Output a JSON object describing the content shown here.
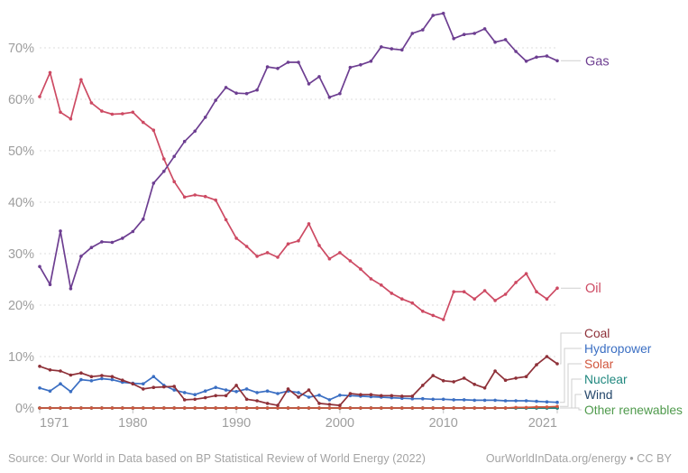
{
  "chart_data": {
    "type": "line",
    "title": "",
    "xlim": [
      1971,
      2021
    ],
    "ylim": [
      0,
      78
    ],
    "x_ticks": [
      1971,
      1980,
      1990,
      2000,
      2010,
      2021
    ],
    "y_ticks": [
      0,
      10,
      20,
      30,
      40,
      50,
      60,
      70
    ],
    "y_tick_suffix": "%",
    "grid": "dashed-horizontal",
    "legend_position": "line-end-labels-right",
    "years": [
      1971,
      1972,
      1973,
      1974,
      1975,
      1976,
      1977,
      1978,
      1979,
      1980,
      1981,
      1982,
      1983,
      1984,
      1985,
      1986,
      1987,
      1988,
      1989,
      1990,
      1991,
      1992,
      1993,
      1994,
      1995,
      1996,
      1997,
      1998,
      1999,
      2000,
      2001,
      2002,
      2003,
      2004,
      2005,
      2006,
      2007,
      2008,
      2009,
      2010,
      2011,
      2012,
      2013,
      2014,
      2015,
      2016,
      2017,
      2018,
      2019,
      2020,
      2021
    ],
    "series": [
      {
        "name": "Gas",
        "color": "#6d3e91",
        "values": [
          27.5,
          24.0,
          34.4,
          23.2,
          29.5,
          31.2,
          32.3,
          32.2,
          33.0,
          34.3,
          36.7,
          43.7,
          46.0,
          48.9,
          51.8,
          53.8,
          56.5,
          59.8,
          62.3,
          61.2,
          61.1,
          61.8,
          66.3,
          66.0,
          67.2,
          67.2,
          63.0,
          64.4,
          60.4,
          61.1,
          66.2,
          66.7,
          67.4,
          70.2,
          69.8,
          69.6,
          72.8,
          73.5,
          76.3,
          76.7,
          71.8,
          72.6,
          72.8,
          73.7,
          71.1,
          71.6,
          69.3,
          67.4,
          68.2,
          68.4,
          67.5
        ]
      },
      {
        "name": "Oil",
        "color": "#cd4a63",
        "values": [
          60.5,
          65.2,
          57.5,
          56.2,
          63.8,
          59.3,
          57.7,
          57.1,
          57.2,
          57.5,
          55.5,
          54.0,
          48.4,
          44.0,
          41.0,
          41.4,
          41.1,
          40.4,
          36.6,
          33.0,
          31.4,
          29.5,
          30.2,
          29.3,
          31.9,
          32.5,
          35.8,
          31.6,
          29.0,
          30.2,
          28.6,
          27.0,
          25.1,
          23.9,
          22.3,
          21.2,
          20.4,
          18.8,
          18.0,
          17.2,
          22.6,
          22.6,
          21.2,
          22.8,
          20.9,
          22.1,
          24.4,
          26.1,
          22.6,
          21.2,
          23.3
        ]
      },
      {
        "name": "Coal",
        "color": "#8e3038",
        "values": [
          8.1,
          7.4,
          7.2,
          6.4,
          6.8,
          6.1,
          6.3,
          6.1,
          5.4,
          4.7,
          3.7,
          4.0,
          4.1,
          4.2,
          1.6,
          1.7,
          2.0,
          2.4,
          2.4,
          4.4,
          1.7,
          1.4,
          0.9,
          0.5,
          3.7,
          2.1,
          3.5,
          0.9,
          0.7,
          0.5,
          2.8,
          2.6,
          2.6,
          2.4,
          2.4,
          2.3,
          2.3,
          4.4,
          6.3,
          5.3,
          5.1,
          5.8,
          4.6,
          3.9,
          7.2,
          5.4,
          5.8,
          6.1,
          8.4,
          10.0,
          8.6
        ]
      },
      {
        "name": "Hydropower",
        "color": "#3b6fc3",
        "values": [
          3.9,
          3.3,
          4.7,
          3.2,
          5.5,
          5.3,
          5.7,
          5.5,
          5.0,
          4.8,
          4.7,
          6.1,
          4.4,
          3.5,
          3.0,
          2.6,
          3.3,
          4.0,
          3.5,
          3.2,
          3.7,
          3.0,
          3.3,
          2.8,
          3.3,
          3.0,
          2.1,
          2.5,
          1.6,
          2.5,
          2.4,
          2.3,
          2.2,
          2.1,
          2.0,
          1.9,
          1.8,
          1.8,
          1.7,
          1.7,
          1.6,
          1.6,
          1.5,
          1.5,
          1.5,
          1.4,
          1.4,
          1.4,
          1.3,
          1.2,
          1.1
        ]
      },
      {
        "name": "Solar",
        "color": "#d1563d",
        "values": [
          0,
          0,
          0,
          0,
          0,
          0,
          0,
          0,
          0,
          0,
          0,
          0,
          0,
          0,
          0,
          0,
          0,
          0,
          0,
          0,
          0,
          0,
          0,
          0,
          0,
          0,
          0,
          0,
          0,
          0,
          0,
          0,
          0,
          0,
          0,
          0,
          0,
          0,
          0,
          0,
          0,
          0,
          0,
          0,
          0,
          0,
          0.1,
          0.1,
          0.2,
          0.2,
          0.3
        ]
      },
      {
        "name": "Nuclear",
        "color": "#1f877e",
        "values": [
          0,
          0,
          0,
          0,
          0,
          0,
          0,
          0,
          0,
          0,
          0,
          0,
          0,
          0,
          0,
          0,
          0,
          0,
          0,
          0,
          0,
          0,
          0,
          0,
          0,
          0,
          0,
          0,
          0,
          0,
          0,
          0,
          0,
          0,
          0,
          0,
          0,
          0,
          0,
          0,
          0,
          0,
          0,
          0,
          0,
          0,
          0,
          0,
          0,
          0,
          0
        ]
      },
      {
        "name": "Wind",
        "color": "#25476b",
        "values": [
          0,
          0,
          0,
          0,
          0,
          0,
          0,
          0,
          0,
          0,
          0,
          0,
          0,
          0,
          0,
          0,
          0,
          0,
          0,
          0,
          0,
          0,
          0,
          0,
          0,
          0,
          0,
          0,
          0,
          0,
          0,
          0,
          0,
          0,
          0,
          0,
          0,
          0,
          0,
          0,
          0,
          0,
          0,
          0,
          0,
          0,
          0,
          0,
          0,
          0,
          0
        ]
      },
      {
        "name": "Other renewables",
        "color": "#4f9a4c",
        "values": [
          0,
          0,
          0,
          0,
          0,
          0,
          0,
          0,
          0,
          0,
          0,
          0,
          0,
          0,
          0,
          0,
          0,
          0,
          0,
          0,
          0,
          0,
          0,
          0,
          0,
          0,
          0,
          0,
          0,
          0,
          0,
          0,
          0,
          0,
          0,
          0,
          0,
          0,
          0,
          0,
          0,
          0,
          0,
          0,
          0,
          0,
          0,
          0,
          0,
          0,
          0
        ]
      }
    ]
  },
  "footer": {
    "source": "Source: Our World in Data based on BP Statistical Review of World Energy (2022)",
    "credit": "OurWorldInData.org/energy • CC BY"
  }
}
